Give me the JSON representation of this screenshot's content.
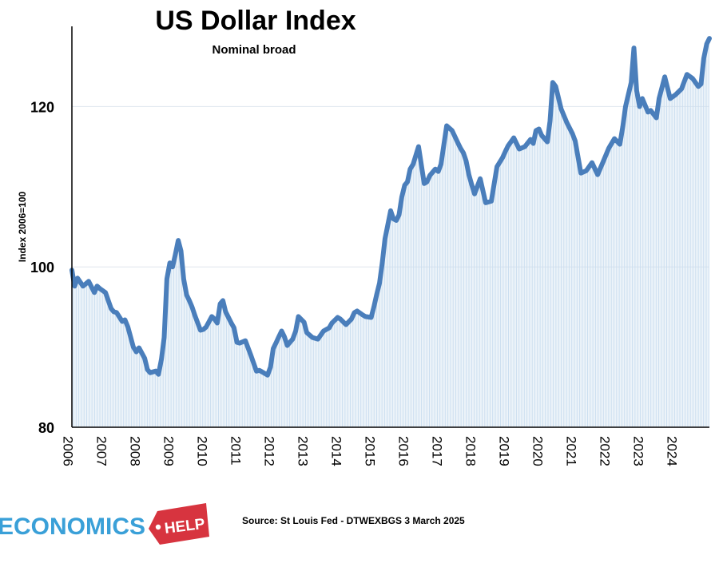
{
  "source_note": "Source: St Louis Fed - DTWEXBGS 3 March 2025",
  "logo": {
    "text": "ECONOMICS",
    "tag": "HELP",
    "colors": {
      "text": "#3aa0d8",
      "tag": "#d7343f"
    }
  },
  "colors": {
    "line": "#4a7ebb",
    "fill": "#c9ddef",
    "grid": "#dfe6ee",
    "axis": "#000000"
  },
  "chart_data": {
    "type": "line",
    "title": "US Dollar Index",
    "subtitle": "Nominal broad",
    "xlabel": "",
    "ylabel": "Index 2006=100",
    "ylim": [
      80,
      130
    ],
    "xlim": [
      2006.0,
      2025.0
    ],
    "yticks": [
      80,
      100,
      120
    ],
    "xtick_labels": [
      "2006",
      "2007",
      "2008",
      "2009",
      "2010",
      "2011",
      "2012",
      "2013",
      "2014",
      "2015",
      "2016",
      "2017",
      "2018",
      "2019",
      "2020",
      "2021",
      "2022",
      "2023",
      "2024"
    ],
    "grid": true,
    "area_fill": true,
    "series": [
      {
        "x": [
          2006.0,
          2006.08,
          2006.17,
          2006.33,
          2006.5,
          2006.67,
          2006.75,
          2006.83,
          2007.0,
          2007.17,
          2007.25,
          2007.33,
          2007.5,
          2007.58,
          2007.67,
          2007.83,
          2007.92,
          2008.0,
          2008.17,
          2008.25,
          2008.33,
          2008.5,
          2008.58,
          2008.67,
          2008.75,
          2008.83,
          2008.92,
          2009.0,
          2009.08,
          2009.17,
          2009.25,
          2009.33,
          2009.42,
          2009.5,
          2009.58,
          2009.67,
          2009.83,
          2009.92,
          2010.0,
          2010.17,
          2010.25,
          2010.33,
          2010.42,
          2010.5,
          2010.58,
          2010.75,
          2010.83,
          2010.92,
          2011.0,
          2011.17,
          2011.33,
          2011.5,
          2011.58,
          2011.67,
          2011.75,
          2011.83,
          2011.92,
          2012.0,
          2012.08,
          2012.17,
          2012.25,
          2012.33,
          2012.42,
          2012.5,
          2012.58,
          2012.67,
          2012.75,
          2012.92,
          2013.0,
          2013.17,
          2013.33,
          2013.5,
          2013.67,
          2013.75,
          2013.92,
          2014.0,
          2014.17,
          2014.33,
          2014.42,
          2014.5,
          2014.67,
          2014.75,
          2014.92,
          2015.0,
          2015.08,
          2015.17,
          2015.25,
          2015.33,
          2015.5,
          2015.58,
          2015.67,
          2015.75,
          2015.83,
          2015.92,
          2016.0,
          2016.08,
          2016.17,
          2016.33,
          2016.5,
          2016.58,
          2016.67,
          2016.83,
          2016.92,
          2017.0,
          2017.17,
          2017.33,
          2017.5,
          2017.58,
          2017.67,
          2017.75,
          2017.83,
          2017.92,
          2018.0,
          2018.17,
          2018.33,
          2018.5,
          2018.67,
          2018.83,
          2018.92,
          2019.0,
          2019.17,
          2019.33,
          2019.5,
          2019.67,
          2019.75,
          2019.83,
          2019.92,
          2020.0,
          2020.17,
          2020.25,
          2020.33,
          2020.42,
          2020.58,
          2020.75,
          2020.92,
          2021.0,
          2021.17,
          2021.33,
          2021.5,
          2021.67,
          2021.83,
          2022.0,
          2022.17,
          2022.33,
          2022.42,
          2022.5,
          2022.67,
          2022.75,
          2022.83,
          2022.92,
          2023.0,
          2023.17,
          2023.25,
          2023.42,
          2023.5,
          2023.67,
          2023.83,
          2024.0,
          2024.17,
          2024.33,
          2024.5,
          2024.67,
          2024.75,
          2024.83,
          2024.92,
          2025.0
        ],
        "y": [
          99.6,
          97.6,
          98.6,
          97.6,
          98.2,
          96.8,
          97.6,
          97.3,
          96.8,
          94.8,
          94.4,
          94.3,
          93.2,
          93.4,
          92.5,
          90.0,
          89.4,
          89.9,
          88.6,
          87.2,
          86.8,
          87.0,
          86.6,
          88.5,
          91.2,
          98.5,
          100.5,
          100.0,
          101.5,
          103.3,
          102.0,
          98.5,
          96.5,
          95.8,
          95.0,
          93.9,
          92.1,
          92.2,
          92.5,
          93.8,
          93.5,
          93.0,
          95.4,
          95.8,
          94.4,
          93.0,
          92.4,
          90.6,
          90.5,
          90.8,
          89.0,
          87.0,
          87.1,
          86.9,
          86.7,
          86.5,
          87.5,
          89.8,
          90.5,
          91.3,
          92.0,
          91.3,
          90.2,
          90.6,
          91.0,
          92.0,
          93.8,
          93.1,
          91.8,
          91.2,
          91.0,
          92.0,
          92.4,
          93.0,
          93.7,
          93.5,
          92.8,
          93.5,
          94.3,
          94.5,
          94.0,
          93.8,
          93.7,
          95.0,
          96.5,
          98.0,
          100.5,
          103.5,
          107.0,
          106.0,
          105.8,
          106.5,
          108.7,
          110.2,
          110.6,
          112.2,
          112.8,
          115.0,
          110.4,
          110.6,
          111.4,
          112.2,
          111.9,
          112.8,
          117.6,
          117.0,
          115.5,
          114.8,
          114.2,
          113.2,
          111.5,
          110.2,
          109.1,
          111.0,
          108.0,
          108.2,
          112.5,
          113.6,
          114.4,
          115.1,
          116.1,
          114.7,
          115.0,
          115.9,
          115.4,
          117.0,
          117.2,
          116.4,
          115.6,
          118.2,
          123.0,
          122.5,
          119.7,
          118.0,
          116.6,
          115.7,
          111.7,
          112.0,
          113.0,
          111.5,
          113.1,
          114.8,
          116.0,
          115.3,
          117.5,
          120.0,
          123.0,
          127.3,
          122.0,
          120.0,
          121.0,
          119.3,
          119.5,
          118.6,
          121.0,
          123.7,
          121.0,
          121.5,
          122.2,
          124.0,
          123.5,
          122.5,
          122.8,
          126.0,
          127.8,
          128.5
        ]
      }
    ]
  }
}
